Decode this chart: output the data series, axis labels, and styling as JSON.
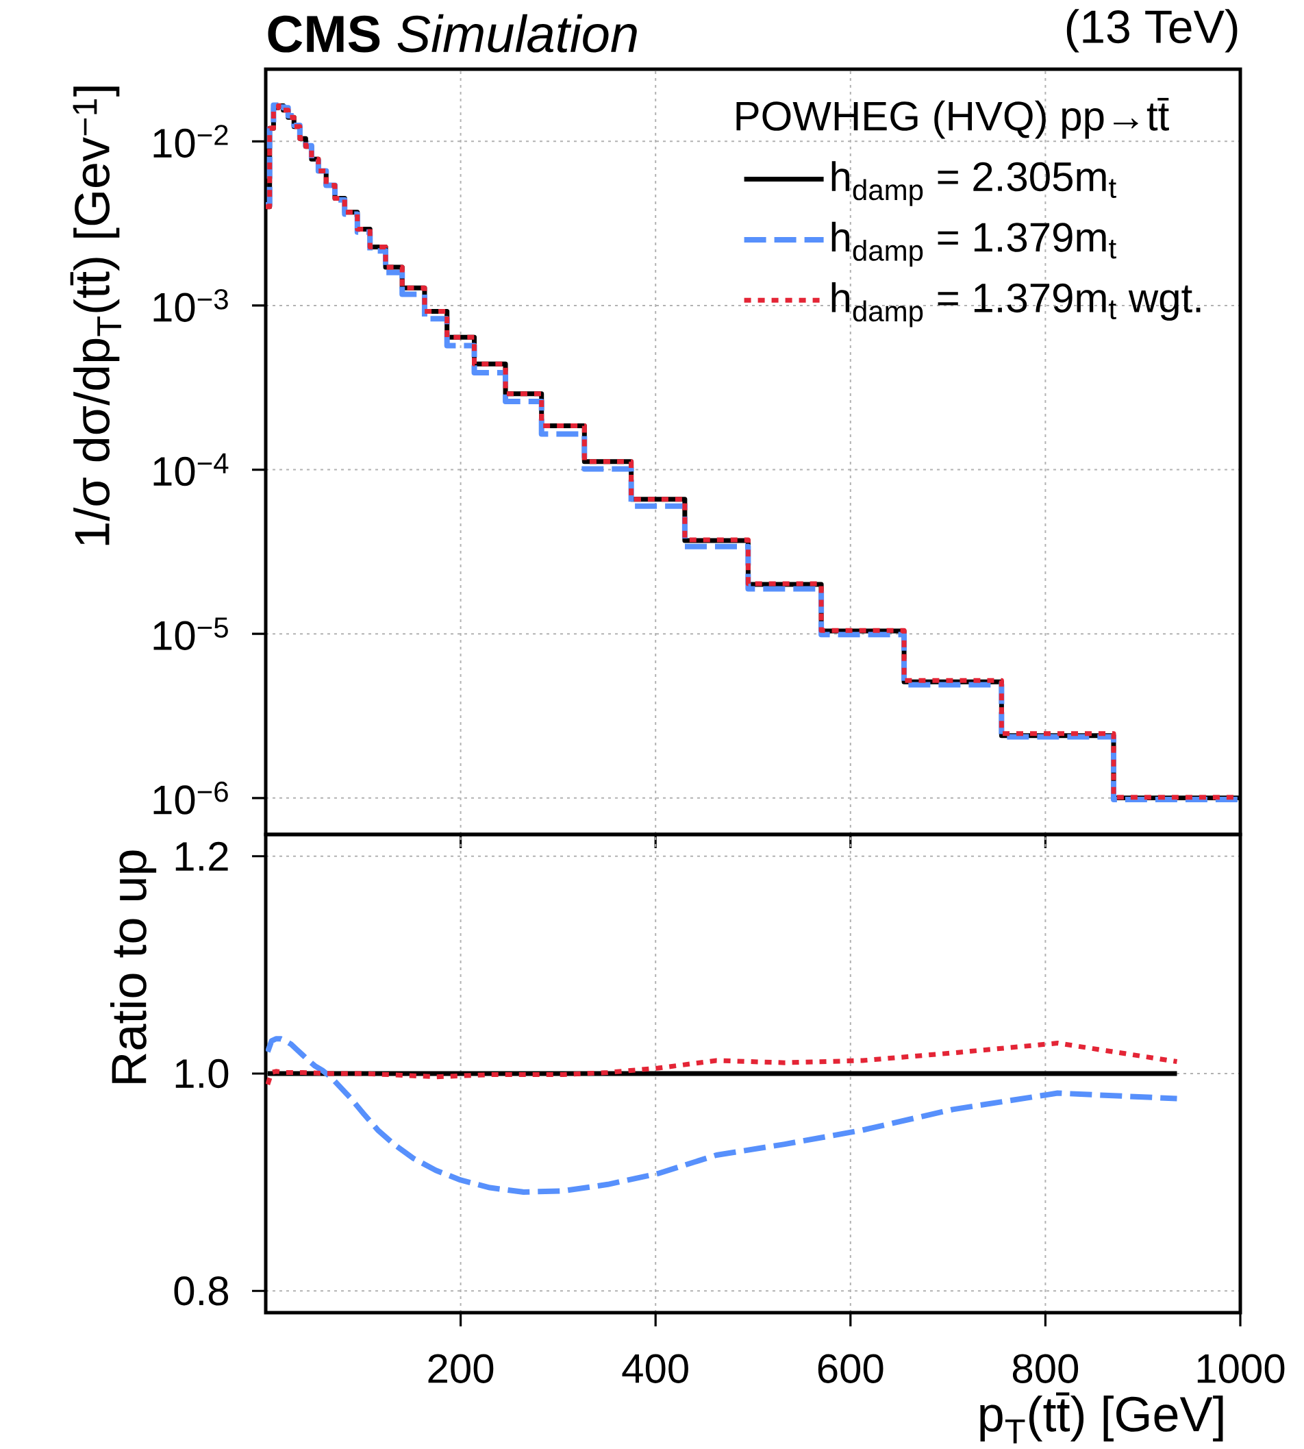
{
  "chart_data": [
    {
      "type": "histogram",
      "title": "**CMS** *Simulation*",
      "subtitle": "(13 TeV)",
      "ylabel": "1/σ dσ/dp$_{T}$(tt̄) [Gev$^{−1}$]",
      "legend_title": "POWHEG (HVQ) pp→tt̄",
      "bins": [
        0,
        4,
        8,
        13,
        18,
        23,
        29,
        35,
        41,
        47,
        54,
        62,
        71,
        81,
        94,
        107,
        123,
        140,
        163,
        186,
        214,
        246,
        283,
        327,
        375,
        430,
        495,
        570,
        655,
        755,
        870,
        1000
      ],
      "series": [
        {
          "name": "h$_{damp}$ = 2.305m$_{t}$",
          "color": "#000000",
          "line_style": "solid",
          "values": [
            0.004,
            0.012,
            0.016,
            0.0165,
            0.0155,
            0.014,
            0.0123,
            0.0104,
            0.0093,
            0.0078,
            0.0066,
            0.0054,
            0.0045,
            0.0037,
            0.00292,
            0.00227,
            0.00171,
            0.00128,
            0.00092,
            0.00064,
            0.00044,
            0.00029,
            0.000185,
            0.000112,
            6.6e-05,
            3.7e-05,
            2e-05,
            1.04e-05,
            5.1e-06,
            2.4e-06,
            1e-06
          ]
        },
        {
          "name": "h$_{damp}$ = 1.379m$_{t}$",
          "color": "#5790fc",
          "line_style": "dashed",
          "values": [
            0.0041,
            0.0124,
            0.0166,
            0.0171,
            0.016,
            0.0143,
            0.0125,
            0.0106,
            0.0094,
            0.0078,
            0.0066,
            0.0054,
            0.0044,
            0.0036,
            0.0028,
            0.00215,
            0.00159,
            0.00117,
            0.00083,
            0.00057,
            0.00039,
            0.00026,
            0.000165,
            0.000101,
            6e-05,
            3.4e-05,
            1.88e-05,
            9.9e-06,
            4.9e-06,
            2.36e-06,
            9.8e-07
          ]
        },
        {
          "name": "h$_{damp}$ = 1.379m$_{t}$ wgt.",
          "color": "#e42536",
          "line_style": "dotted",
          "values": [
            0.004,
            0.012,
            0.016,
            0.0165,
            0.0155,
            0.014,
            0.0123,
            0.0104,
            0.0093,
            0.0078,
            0.0066,
            0.0054,
            0.0045,
            0.0037,
            0.00292,
            0.00227,
            0.00171,
            0.00128,
            0.00092,
            0.00064,
            0.00044,
            0.00029,
            0.000185,
            0.000112,
            6.6e-05,
            3.74e-05,
            2.02e-05,
            1.05e-05,
            5.2e-06,
            2.47e-06,
            1.01e-06
          ]
        }
      ],
      "log": true,
      "xlim": [
        0,
        1000
      ],
      "xticks": [
        200,
        400,
        600,
        800,
        1000
      ],
      "ylim": [
        6e-07,
        0.0275
      ],
      "yticks": [
        {
          "value": 1e-06,
          "label": "10$^{−6}$"
        },
        {
          "value": 1e-05,
          "label": "10$^{−5}$"
        },
        {
          "value": 0.0001,
          "label": "10$^{−4}$"
        },
        {
          "value": 0.001,
          "label": "10$^{−3}$"
        },
        {
          "value": 0.01,
          "label": "10$^{−2}$"
        }
      ],
      "tick_labels": "y",
      "grid": true,
      "legend": "top right"
    },
    {
      "type": "line",
      "xlabel": "p$_{T}$(tt̄) [GeV]",
      "ylabel": "Ratio to up",
      "series": [
        {
          "color": "#000000",
          "line_style": "solid",
          "x": [
            2,
            935
          ],
          "values": [
            1,
            1
          ]
        },
        {
          "color": "#5790fc",
          "line_style": "dashed",
          "x": [
            2,
            6,
            10.5,
            15.5,
            20.5,
            26,
            32,
            38,
            44,
            50.5,
            58,
            66.5,
            76,
            87.5,
            100.5,
            115,
            131.5,
            151.5,
            174.5,
            200,
            230,
            264.5,
            305,
            351,
            402.5,
            462.5,
            532.5,
            612.5,
            705,
            812.5,
            935
          ],
          "values": [
            1.02,
            1.03,
            1.032,
            1.032,
            1.03,
            1.027,
            1.022,
            1.017,
            1.012,
            1.007,
            1.003,
            0.997,
            0.988,
            0.977,
            0.963,
            0.948,
            0.935,
            0.922,
            0.911,
            0.902,
            0.895,
            0.891,
            0.892,
            0.898,
            0.908,
            0.925,
            0.935,
            0.948,
            0.967,
            0.982,
            0.977
          ]
        },
        {
          "color": "#e42536",
          "line_style": "dotted",
          "x": [
            2,
            6,
            10.5,
            20.5,
            38,
            66.5,
            100.5,
            151.5,
            174.5,
            230,
            305,
            351,
            402.5,
            462.5,
            532.5,
            612.5,
            705,
            812.5,
            935
          ],
          "values": [
            0.99,
            1.001,
            1.002,
            1.001,
            1.001,
            1.0,
            1.0,
            0.998,
            0.997,
            0.999,
            0.999,
            1.001,
            1.005,
            1.012,
            1.01,
            1.012,
            1.019,
            1.028,
            1.011
          ]
        }
      ],
      "xlim": [
        0,
        1000
      ],
      "xticks": [
        200,
        400,
        600,
        800,
        1000
      ],
      "ylim": [
        0.78,
        1.22
      ],
      "yticks": [
        0.8,
        {
          "value": 1.0,
          "label": "1.0"
        },
        1.2
      ],
      "grid": true
    }
  ]
}
